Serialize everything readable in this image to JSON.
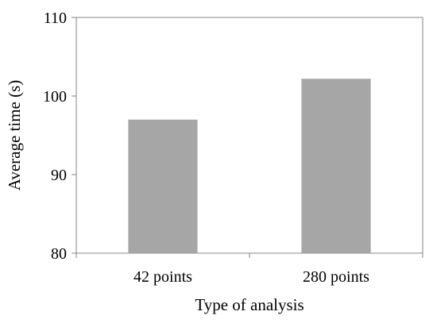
{
  "chart_data": {
    "type": "bar",
    "categories": [
      "42 points",
      "280 points"
    ],
    "values": [
      97,
      102.2
    ],
    "title": "",
    "xlabel": "Type of analysis",
    "ylabel": "Average time (s)",
    "ylim": [
      80,
      110
    ],
    "yticks": [
      "80",
      "90",
      "100",
      "110"
    ],
    "grid": false,
    "legend": "none",
    "bar_color": "#a6a6a6",
    "axis_color": "#868686"
  }
}
